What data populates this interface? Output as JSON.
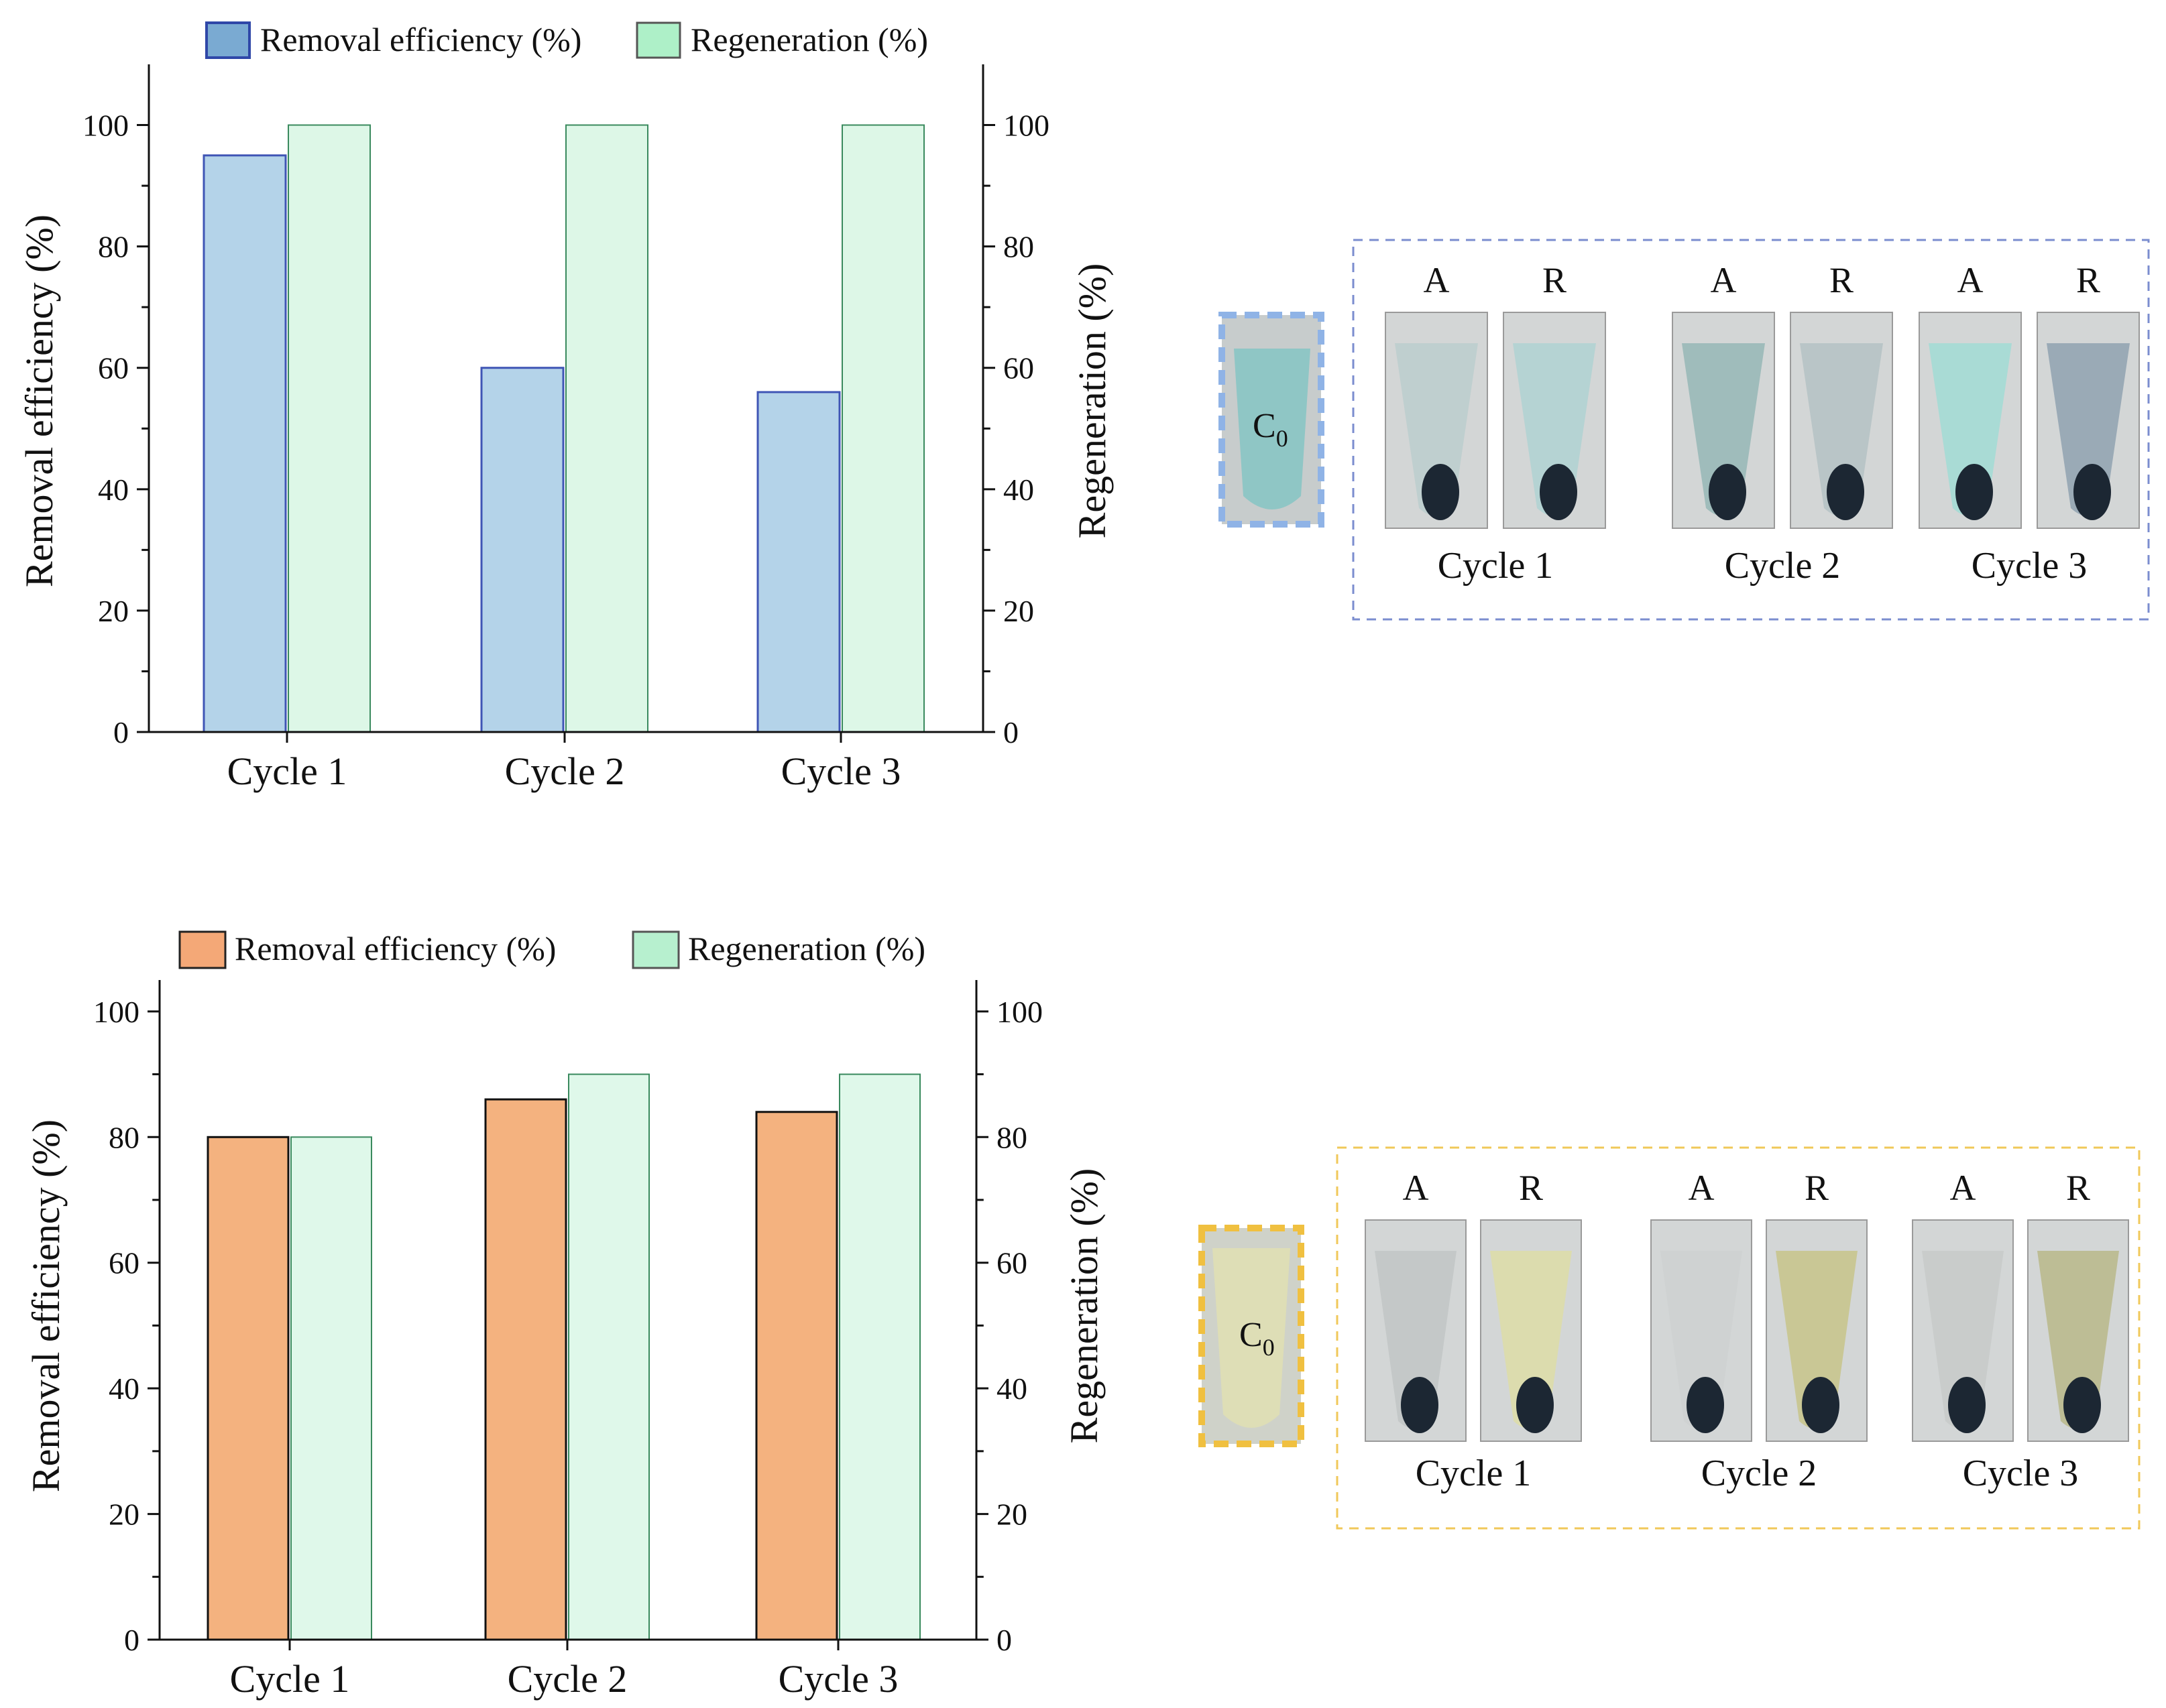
{
  "chart_data": [
    {
      "type": "bar",
      "categories": [
        "Cycle 1",
        "Cycle 2",
        "Cycle 3"
      ],
      "series": [
        {
          "name": "Removal efficiency (%)",
          "values": [
            95,
            60,
            56
          ],
          "color": "#b4d3e9",
          "edge": "#3f55b5"
        },
        {
          "name": "Regeneration (%)",
          "values": [
            100,
            100,
            100
          ],
          "color": "#ddf7e7",
          "edge": "#3a8a5e"
        }
      ],
      "legend_swatch_colors": [
        "#7aaad2",
        "#aef0c8"
      ],
      "ylabel": "Removal efficiency (%)",
      "y2label": "Regeneration (%)",
      "ylim": [
        0,
        110
      ],
      "yticks": [
        "0",
        "20",
        "40",
        "60",
        "80",
        "100"
      ],
      "legend_position": "top"
    },
    {
      "type": "bar",
      "categories": [
        "Cycle 1",
        "Cycle 2",
        "Cycle 3"
      ],
      "series": [
        {
          "name": "Removal efficiency (%)",
          "values": [
            80,
            86,
            84
          ],
          "color": "#f4b27f",
          "edge": "#111111"
        },
        {
          "name": "Regeneration (%)",
          "values": [
            80,
            90,
            90
          ],
          "color": "#dff8ea",
          "edge": "#3a8a5e"
        }
      ],
      "legend_swatch_colors": [
        "#f4a877",
        "#b7f0cf"
      ],
      "ylabel": "Removal efficiency (%)",
      "y2label": "Regeneration (%)",
      "ylim": [
        0,
        105
      ],
      "yticks": [
        "0",
        "20",
        "40",
        "60",
        "80",
        "100"
      ],
      "legend_position": "top"
    }
  ],
  "photos": [
    {
      "c0_label": "C",
      "c0_sub": "0",
      "frame_color": "#7b8dcf",
      "c0_frame_color": "#8fb3e6",
      "groups": [
        {
          "cycle": "Cycle 1",
          "a_label": "A",
          "r_label": "R",
          "a_liquid": "#bfcfcf",
          "r_liquid": "#b5d3d3"
        },
        {
          "cycle": "Cycle 2",
          "a_label": "A",
          "r_label": "R",
          "a_liquid": "#9fbcbb",
          "r_liquid": "#b9c5c7"
        },
        {
          "cycle": "Cycle 3",
          "a_label": "A",
          "r_label": "R",
          "a_liquid": "#a9dbd5",
          "r_liquid": "#9aaab6"
        }
      ],
      "c0_liquid": "#8fc6c5"
    },
    {
      "c0_label": "C",
      "c0_sub": "0",
      "frame_color": "#f0c85a",
      "c0_frame_color": "#f0c040",
      "groups": [
        {
          "cycle": "Cycle 1",
          "a_label": "A",
          "r_label": "R",
          "a_liquid": "#c4c8c8",
          "r_liquid": "#dcdcae"
        },
        {
          "cycle": "Cycle 2",
          "a_label": "A",
          "r_label": "R",
          "a_liquid": "#cfd2d2",
          "r_liquid": "#c9c795"
        },
        {
          "cycle": "Cycle 3",
          "a_label": "A",
          "r_label": "R",
          "a_liquid": "#c9cccb",
          "r_liquid": "#bdbd95"
        }
      ],
      "c0_liquid": "#dedeb6"
    }
  ]
}
